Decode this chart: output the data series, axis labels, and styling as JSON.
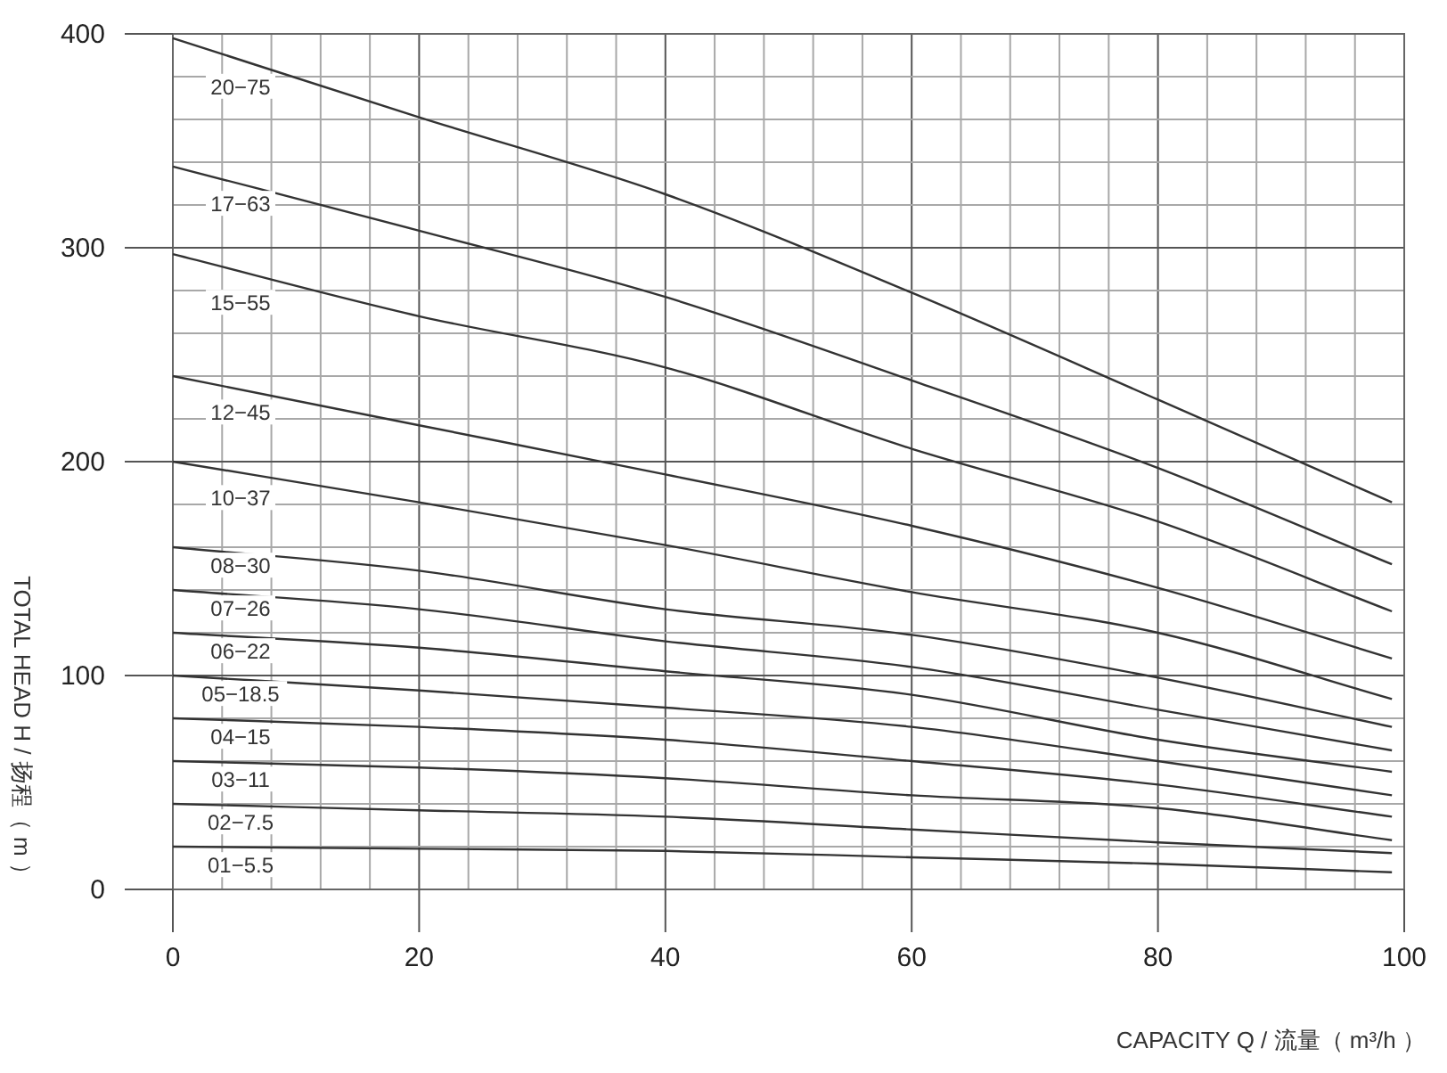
{
  "chart_data": {
    "type": "line",
    "xlabel": "CAPACITY Q / 流量（ m³/h ）",
    "ylabel": "TOTAL HEAD H / 扬程（ m ）",
    "xlim": [
      0,
      100
    ],
    "ylim": [
      0,
      400
    ],
    "xticks": [
      0,
      {
        "value": 4,
        "label": null
      },
      {
        "value": 8,
        "label": null
      },
      {
        "value": 12,
        "label": null
      },
      {
        "value": 16,
        "label": null
      },
      20,
      {
        "value": 24,
        "label": null
      },
      {
        "value": 28,
        "label": null
      },
      {
        "value": 32,
        "label": null
      },
      {
        "value": 36,
        "label": null
      },
      40,
      {
        "value": 44,
        "label": null
      },
      {
        "value": 48,
        "label": null
      },
      {
        "value": 52,
        "label": null
      },
      {
        "value": 56,
        "label": null
      },
      60,
      {
        "value": 64,
        "label": null
      },
      {
        "value": 68,
        "label": null
      },
      {
        "value": 72,
        "label": null
      },
      {
        "value": 76,
        "label": null
      },
      80,
      {
        "value": 84,
        "label": null
      },
      {
        "value": 88,
        "label": null
      },
      {
        "value": 92,
        "label": null
      },
      {
        "value": 96,
        "label": null
      },
      100
    ],
    "yticks": [
      0,
      {
        "value": 20,
        "label": null
      },
      {
        "value": 40,
        "label": null
      },
      {
        "value": 60,
        "label": null
      },
      {
        "value": 80,
        "label": null
      },
      100,
      {
        "value": 120,
        "label": null
      },
      {
        "value": 140,
        "label": null
      },
      {
        "value": 160,
        "label": null
      },
      {
        "value": 180,
        "label": null
      },
      200,
      {
        "value": 220,
        "label": null
      },
      {
        "value": 240,
        "label": null
      },
      {
        "value": 260,
        "label": null
      },
      {
        "value": 280,
        "label": null
      },
      300,
      {
        "value": 320,
        "label": null
      },
      {
        "value": 340,
        "label": null
      },
      {
        "value": 360,
        "label": null
      },
      {
        "value": 380,
        "label": null
      },
      400
    ],
    "grid": true,
    "series": [
      {
        "name": "20−75",
        "color": "#333333",
        "x": [
          0,
          20,
          40,
          60,
          80,
          99
        ],
        "values": [
          398,
          361,
          325,
          279,
          229,
          181
        ]
      },
      {
        "name": "17−63",
        "color": "#333333",
        "x": [
          0,
          20,
          40,
          60,
          80,
          99
        ],
        "values": [
          338,
          308,
          277,
          238,
          197,
          152
        ]
      },
      {
        "name": "15−55",
        "color": "#333333",
        "x": [
          0,
          20,
          40,
          60,
          80,
          99
        ],
        "values": [
          297,
          268,
          244,
          206,
          172,
          130
        ]
      },
      {
        "name": "12−45",
        "color": "#333333",
        "x": [
          0,
          20,
          40,
          60,
          80,
          99
        ],
        "values": [
          240,
          217,
          194,
          170,
          141,
          108
        ]
      },
      {
        "name": "10−37",
        "color": "#333333",
        "x": [
          0,
          20,
          40,
          60,
          80,
          99
        ],
        "values": [
          200,
          181,
          161,
          139,
          120,
          89
        ]
      },
      {
        "name": "08−30",
        "color": "#333333",
        "x": [
          0,
          20,
          40,
          60,
          80,
          99
        ],
        "values": [
          160,
          149,
          131,
          119,
          99,
          76
        ]
      },
      {
        "name": "07−26",
        "color": "#333333",
        "x": [
          0,
          20,
          40,
          60,
          80,
          99
        ],
        "values": [
          140,
          131,
          116,
          104,
          84,
          65
        ]
      },
      {
        "name": "06−22",
        "color": "#333333",
        "x": [
          0,
          20,
          40,
          60,
          80,
          99
        ],
        "values": [
          120,
          113,
          102,
          91,
          70,
          55
        ]
      },
      {
        "name": "05−18.5",
        "color": "#333333",
        "x": [
          0,
          20,
          40,
          60,
          80,
          99
        ],
        "values": [
          100,
          93,
          85,
          76,
          60,
          44
        ]
      },
      {
        "name": "04−15",
        "color": "#333333",
        "x": [
          0,
          20,
          40,
          60,
          80,
          99
        ],
        "values": [
          80,
          76,
          70,
          60,
          49,
          34
        ]
      },
      {
        "name": "03−11",
        "color": "#333333",
        "x": [
          0,
          20,
          40,
          60,
          80,
          99
        ],
        "values": [
          60,
          57,
          52,
          44,
          38,
          23
        ]
      },
      {
        "name": "02−7.5",
        "color": "#333333",
        "x": [
          0,
          20,
          40,
          60,
          80,
          99
        ],
        "values": [
          40,
          37,
          34,
          28,
          22,
          17
        ]
      },
      {
        "name": "01−5.5",
        "color": "#333333",
        "x": [
          0,
          20,
          40,
          60,
          80,
          99
        ],
        "values": [
          20,
          19,
          18,
          15,
          12,
          8
        ]
      }
    ]
  }
}
